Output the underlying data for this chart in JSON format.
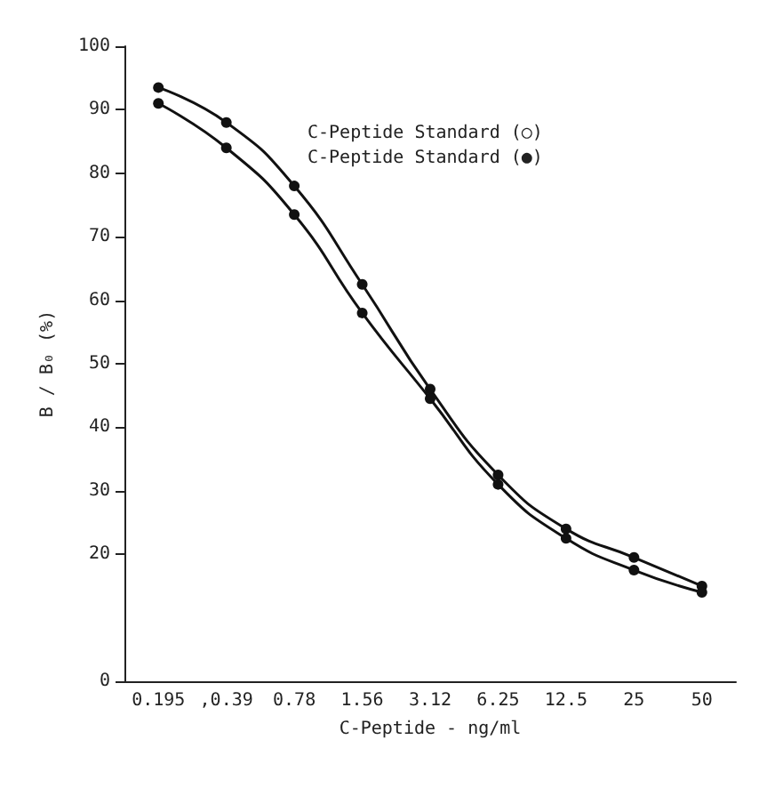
{
  "chart_data": {
    "type": "line",
    "xlabel": "C-Peptide - ng/ml",
    "ylabel": "B / B₀ (%)",
    "categories": [
      "0.195",
      ",0.39",
      "0.78",
      "1.56",
      "3.12",
      "6.25",
      "12.5",
      "25",
      "50"
    ],
    "series": [
      {
        "color": "#111111",
        "values": [
          93.5,
          88,
          78,
          62.5,
          46,
          32.5,
          24,
          19.5,
          15
        ]
      },
      {
        "color": "#111111",
        "values": [
          91,
          84,
          73.5,
          58,
          44.5,
          31,
          22.5,
          17.5,
          14
        ]
      }
    ],
    "ylim": [
      0,
      100
    ],
    "yticks": [
      0,
      20,
      30,
      40,
      50,
      60,
      70,
      80,
      90,
      100
    ],
    "annotations": [
      "C-Peptide Standard (○)",
      "C-Peptide Standard (●)"
    ],
    "marker": "circle",
    "line_style": "solid",
    "grid": false
  }
}
